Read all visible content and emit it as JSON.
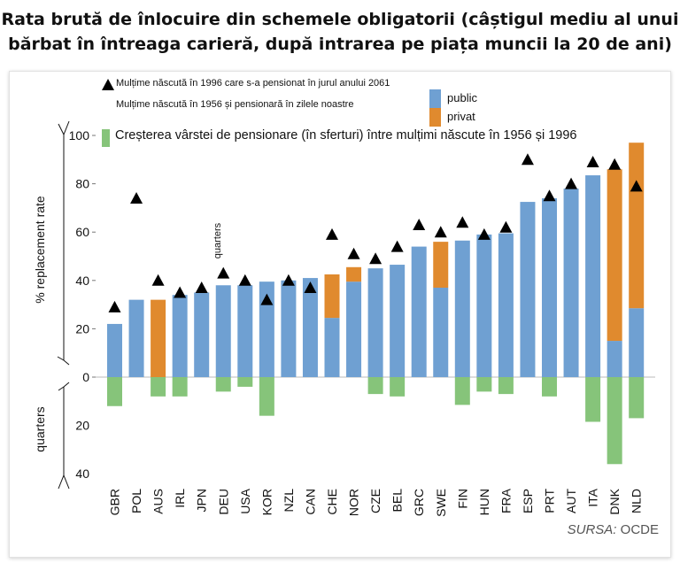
{
  "title_line1": "Rata brută de înlocuire din schemele obligatorii (câștigul mediu al unui",
  "title_line2": "bărbat în întreaga carieră, după intrarea pe piața muncii la 20 de ani)",
  "legend": {
    "triangle": "Mulțime născută în 1996 care s-a pensionat în jurul anului 2061",
    "bar_cohort": "Mulțime născută în 1956 și pensionară în zilele noastre",
    "public": "public",
    "privat": "privat",
    "green": "Creșterea vârstei de pensionare (în sferturi) între mulțimi născute în 1956 și 1996"
  },
  "colors": {
    "public": "#6fa0d2",
    "privat": "#e08a2e",
    "green": "#86c47a",
    "triangle": "#000000"
  },
  "source": {
    "label": "SURSA:",
    "name": "OCDE"
  },
  "chart_data": {
    "type": "bar",
    "ylabel_top": "% replacement rate",
    "ylabel_bottom": "quarters",
    "annotation": "quarters",
    "ylim_top": [
      0,
      100
    ],
    "ylim_bottom": [
      0,
      40
    ],
    "yticks_top": [
      "0",
      "20",
      "40",
      "60",
      "80",
      "100"
    ],
    "yticks_bottom": [
      "20",
      "40"
    ],
    "categories": [
      "GBR",
      "POL",
      "AUS",
      "IRL",
      "JPN",
      "DEU",
      "USA",
      "KOR",
      "NZL",
      "CAN",
      "CHE",
      "NOR",
      "CZE",
      "BEL",
      "GRC",
      "SWE",
      "FIN",
      "HUN",
      "FRA",
      "ESP",
      "PRT",
      "AUT",
      "ITA",
      "DNK",
      "NLD"
    ],
    "series": [
      {
        "name": "public",
        "values": [
          22,
          32,
          0,
          34,
          35,
          38,
          38,
          39.5,
          40,
          41,
          24.5,
          39.5,
          45,
          46.5,
          54,
          37,
          56.5,
          59,
          59.5,
          72.5,
          74,
          78,
          83.5,
          15,
          28.5
        ]
      },
      {
        "name": "privat",
        "values": [
          0,
          0,
          32,
          0,
          0,
          0,
          0,
          0,
          0,
          0,
          18,
          6,
          0,
          0,
          0,
          19,
          0,
          0,
          0,
          0,
          0,
          0,
          0,
          71,
          68.5
        ]
      },
      {
        "name": "Mulțime născută în 1996 care s-a pensionat în jurul anului 2061",
        "values": [
          29,
          74,
          40,
          35,
          37,
          43,
          40,
          32,
          40,
          37,
          59,
          51,
          49,
          54,
          63,
          60,
          64,
          59,
          62,
          90,
          75,
          80,
          89,
          88,
          79
        ]
      },
      {
        "name": "Creșterea vârstei de pensionare (în sferturi) între mulțimi născute în 1956 și 1996",
        "values": [
          12,
          0,
          8,
          8,
          0,
          6,
          4,
          16,
          0,
          0,
          0,
          0,
          7,
          8,
          0,
          0,
          11.5,
          6,
          7,
          0,
          8,
          0,
          18.5,
          36,
          17
        ]
      }
    ]
  }
}
